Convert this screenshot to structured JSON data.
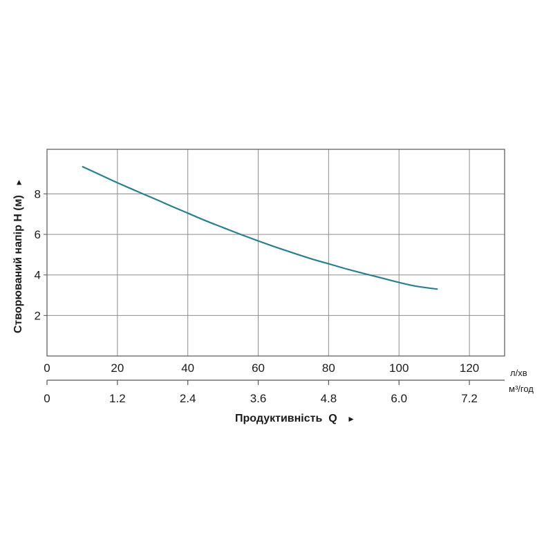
{
  "chart_data": {
    "type": "line",
    "xlabel": "Продуктивність  Q",
    "ylabel": "Створюваний напір H (м)",
    "axis_arrow": "►",
    "x_unit_primary": "л/хв",
    "x_unit_secondary": "м³/год",
    "xlim": [
      0,
      130
    ],
    "ylim": [
      0,
      10.2
    ],
    "x_ticks": [
      0,
      20,
      40,
      60,
      80,
      100,
      120
    ],
    "x_tick_labels": [
      "0",
      "20",
      "40",
      "60",
      "80",
      "100",
      "120"
    ],
    "x2_tick_labels": [
      "0",
      "1.2",
      "2.4",
      "3.6",
      "4.8",
      "6.0",
      "7.2"
    ],
    "y_ticks": [
      2,
      4,
      6,
      8
    ],
    "y_tick_labels": [
      "2",
      "4",
      "6",
      "8"
    ],
    "grid": true,
    "line_color": "#2a7f8e",
    "series": [
      {
        "x": [
          10,
          15,
          20,
          25,
          30,
          35,
          40,
          45,
          50,
          55,
          60,
          65,
          70,
          75,
          80,
          85,
          90,
          95,
          100,
          105,
          111
        ],
        "values": [
          9.35,
          8.95,
          8.55,
          8.17,
          7.8,
          7.42,
          7.05,
          6.68,
          6.34,
          6.0,
          5.68,
          5.37,
          5.08,
          4.8,
          4.55,
          4.3,
          4.07,
          3.85,
          3.63,
          3.44,
          3.3
        ]
      }
    ]
  }
}
